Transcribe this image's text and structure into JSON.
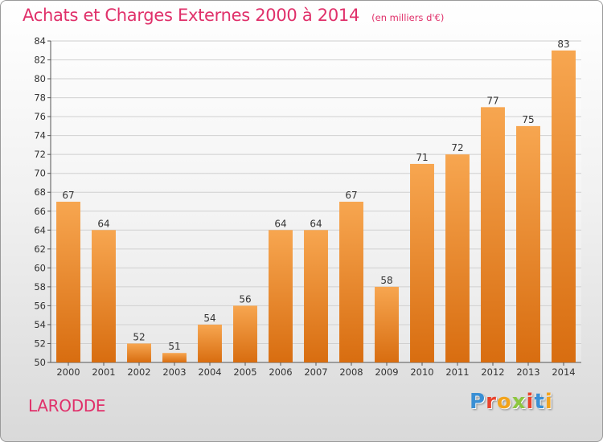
{
  "header": {
    "title": "Achats et Charges Externes 2000 à 2014",
    "subtitle": "(en milliers d'€)"
  },
  "footer": {
    "location": "LARODDE",
    "logo_text": "Proxiti",
    "logo_colors": [
      "#3a8fd4",
      "#e8422c",
      "#f2a31b",
      "#8cc63f",
      "#e8422c",
      "#3a8fd4",
      "#f2a31b"
    ]
  },
  "chart_data": {
    "type": "bar",
    "title": "Achats et Charges Externes 2000 à 2014",
    "subtitle": "(en milliers d'€)",
    "xlabel": "",
    "ylabel": "",
    "categories": [
      "2000",
      "2001",
      "2002",
      "2003",
      "2004",
      "2005",
      "2006",
      "2007",
      "2008",
      "2009",
      "2010",
      "2011",
      "2012",
      "2013",
      "2014"
    ],
    "values": [
      67,
      64,
      52,
      51,
      54,
      56,
      64,
      64,
      67,
      58,
      71,
      72,
      77,
      75,
      83
    ],
    "ylim": [
      50,
      84
    ],
    "yticks": [
      50,
      52,
      54,
      56,
      58,
      60,
      62,
      64,
      66,
      68,
      70,
      72,
      74,
      76,
      78,
      80,
      82,
      84
    ],
    "grid": true,
    "bar_color_light": "#f7a650",
    "bar_color_dark": "#d86d10",
    "label_color": "#333333"
  }
}
